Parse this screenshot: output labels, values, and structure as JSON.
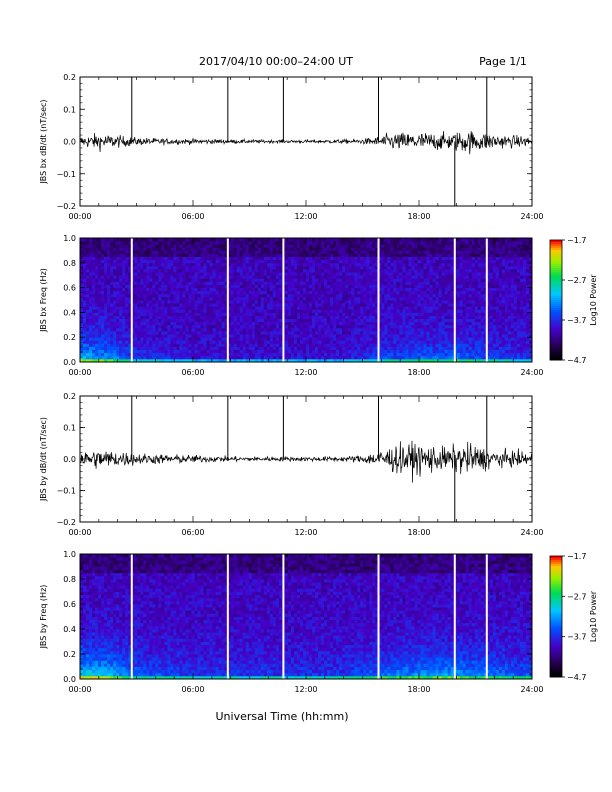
{
  "header": {
    "title": "2017/04/10   00:00–24:00 UT",
    "page": "Page 1/1"
  },
  "footer": {
    "xlabel": "Universal Time (hh:mm)"
  },
  "chart_data": [
    {
      "type": "line",
      "ylabel": "JBS bx dB/dt (nT/sec)",
      "xlim": [
        0,
        24
      ],
      "ylim": [
        -0.2,
        0.2
      ],
      "x_tick_labels": [
        "00:00",
        "06:00",
        "12:00",
        "18:00",
        "24:00"
      ],
      "y_tick_labels": [
        "0.2",
        "0.1",
        "0.0",
        "−0.1",
        "−0.2"
      ],
      "spikes_hours": [
        2.75,
        7.85,
        10.8,
        15.85,
        19.9,
        21.6
      ],
      "envelope": {
        "hours": [
          0,
          1,
          2,
          3,
          4,
          6,
          8,
          10,
          12,
          14,
          15,
          15.85,
          16.5,
          17.5,
          18.5,
          19.5,
          20.5,
          21.5,
          22.5,
          24
        ],
        "amplitude": [
          0.015,
          0.025,
          0.018,
          0.012,
          0.01,
          0.008,
          0.006,
          0.005,
          0.005,
          0.006,
          0.008,
          0.015,
          0.025,
          0.028,
          0.028,
          0.025,
          0.035,
          0.028,
          0.02,
          0.015
        ]
      }
    },
    {
      "type": "heatmap",
      "ylabel": "JBS bx Freq (Hz)",
      "xlim": [
        0,
        24
      ],
      "ylim": [
        0,
        1
      ],
      "x_tick_labels": [
        "00:00",
        "06:00",
        "12:00",
        "18:00",
        "24:00"
      ],
      "y_tick_labels": [
        "1.0",
        "0.8",
        "0.6",
        "0.4",
        "0.2",
        "0.0"
      ],
      "colorbar_label": "Log10 Power",
      "colorbar_ticks": [
        "−1.7",
        "−2.7",
        "−3.7",
        "−4.7"
      ],
      "crange": [
        -4.7,
        -1.7
      ],
      "gaps_hours": [
        2.75,
        7.85,
        10.8,
        15.85,
        19.9,
        21.6
      ]
    },
    {
      "type": "line",
      "ylabel": "JBS by dB/dt (nT/sec)",
      "xlim": [
        0,
        24
      ],
      "ylim": [
        -0.2,
        0.2
      ],
      "x_tick_labels": [
        "00:00",
        "06:00",
        "12:00",
        "18:00",
        "24:00"
      ],
      "y_tick_labels": [
        "0.2",
        "0.1",
        "0.0",
        "−0.1",
        "−0.2"
      ],
      "spikes_hours": [
        2.75,
        7.85,
        10.8,
        15.85,
        19.9,
        21.6
      ],
      "envelope": {
        "hours": [
          0,
          1,
          2,
          3,
          4,
          6,
          8,
          10,
          12,
          14,
          15,
          15.85,
          16.5,
          17.5,
          18.5,
          19.5,
          20.5,
          21.5,
          22.5,
          24
        ],
        "amplitude": [
          0.025,
          0.03,
          0.025,
          0.018,
          0.015,
          0.012,
          0.008,
          0.007,
          0.007,
          0.008,
          0.012,
          0.025,
          0.04,
          0.05,
          0.045,
          0.035,
          0.05,
          0.035,
          0.025,
          0.02
        ]
      }
    },
    {
      "type": "heatmap",
      "ylabel": "JBS by Freq (Hz)",
      "xlim": [
        0,
        24
      ],
      "ylim": [
        0,
        1
      ],
      "x_tick_labels": [
        "00:00",
        "06:00",
        "12:00",
        "18:00",
        "24:00"
      ],
      "y_tick_labels": [
        "1.0",
        "0.8",
        "0.6",
        "0.4",
        "0.2",
        "0.0"
      ],
      "colorbar_label": "Log10 Power",
      "colorbar_ticks": [
        "−1.7",
        "−2.7",
        "−3.7",
        "−4.7"
      ],
      "crange": [
        -4.7,
        -1.7
      ],
      "gaps_hours": [
        2.75,
        7.85,
        10.8,
        15.85,
        19.9,
        21.6
      ]
    }
  ]
}
